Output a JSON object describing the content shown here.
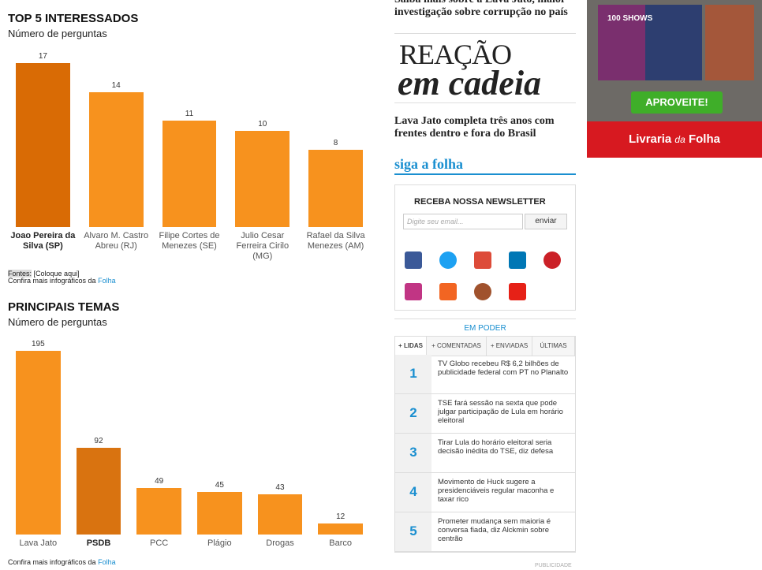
{
  "chart_data": [
    {
      "type": "bar",
      "title": "TOP 5 INTERESSADOS",
      "subtitle": "Número de perguntas",
      "categories": [
        "Joao Pereira da Silva (SP)",
        "Alvaro M. Castro Abreu (RJ)",
        "Filipe Cortes de Menezes (SE)",
        "Julio Cesar Ferreira Cirilo (MG)",
        "Rafael da Silva Menezes (AM)"
      ],
      "values": [
        17,
        14,
        11,
        10,
        8
      ],
      "colors": [
        "#d96b05",
        "#f7921e",
        "#f7921e",
        "#f7921e",
        "#f7921e"
      ],
      "bold_category": 0,
      "footer": {
        "label": "Fontes:",
        "text": "[Coloque aqui]",
        "more": "Confira mais infográficos da",
        "link": "Folha"
      }
    },
    {
      "type": "bar",
      "title": "PRINCIPAIS TEMAS",
      "subtitle": "Número de perguntas",
      "categories": [
        "Lava Jato",
        "PSDB",
        "PCC",
        "Plágio",
        "Drogas",
        "Barco"
      ],
      "values": [
        195,
        92,
        49,
        45,
        43,
        12
      ],
      "colors": [
        "#f7921e",
        "#d97310",
        "#f7921e",
        "#f7921e",
        "#f7921e",
        "#f7921e"
      ],
      "bold_category": 1,
      "footer": {
        "more": "Confira mais infográficos da",
        "link": "Folha"
      }
    }
  ],
  "sidebar": {
    "teaser": [
      "Saiba mais sobre a Lava Jato, maior",
      "investigação sobre corrupção no país"
    ],
    "logo": [
      "REAÇÃO",
      "em cadeia"
    ],
    "headline": "Lava Jato completa três anos com frentes dentro e fora do Brasil",
    "follow": "siga a folha",
    "newsletter": {
      "title": "RECEBA NOSSA NEWSLETTER",
      "placeholder": "Digite seu email...",
      "button": "enviar"
    },
    "section": "EM PODER",
    "tabs": [
      "+ LIDAS",
      "+ COMENTADAS",
      "+ ENVIADAS",
      "ÚLTIMAS"
    ],
    "list": [
      {
        "n": "1",
        "text": "TV Globo recebeu R$ 6,2 bilhões de publicidade federal com PT no Planalto"
      },
      {
        "n": "2",
        "text": "TSE fará sessão na sexta que pode julgar participação de Lula em horário eleitoral"
      },
      {
        "n": "3",
        "text": "Tirar Lula do horário eleitoral seria decisão inédita do TSE, diz defesa"
      },
      {
        "n": "4",
        "text": "Movimento de Huck sugere a presidenciáveis regular maconha e taxar rico"
      },
      {
        "n": "5",
        "text": "Prometer mudança sem maioria é conversa fiada, diz Alckmin sobre centrão"
      }
    ],
    "ad_label": "PUBLICIDADE"
  },
  "ad": {
    "shows": "100 SHOWS",
    "cta": "APROVEITE!",
    "brand": [
      "Livraria",
      "da",
      "Folha"
    ]
  }
}
